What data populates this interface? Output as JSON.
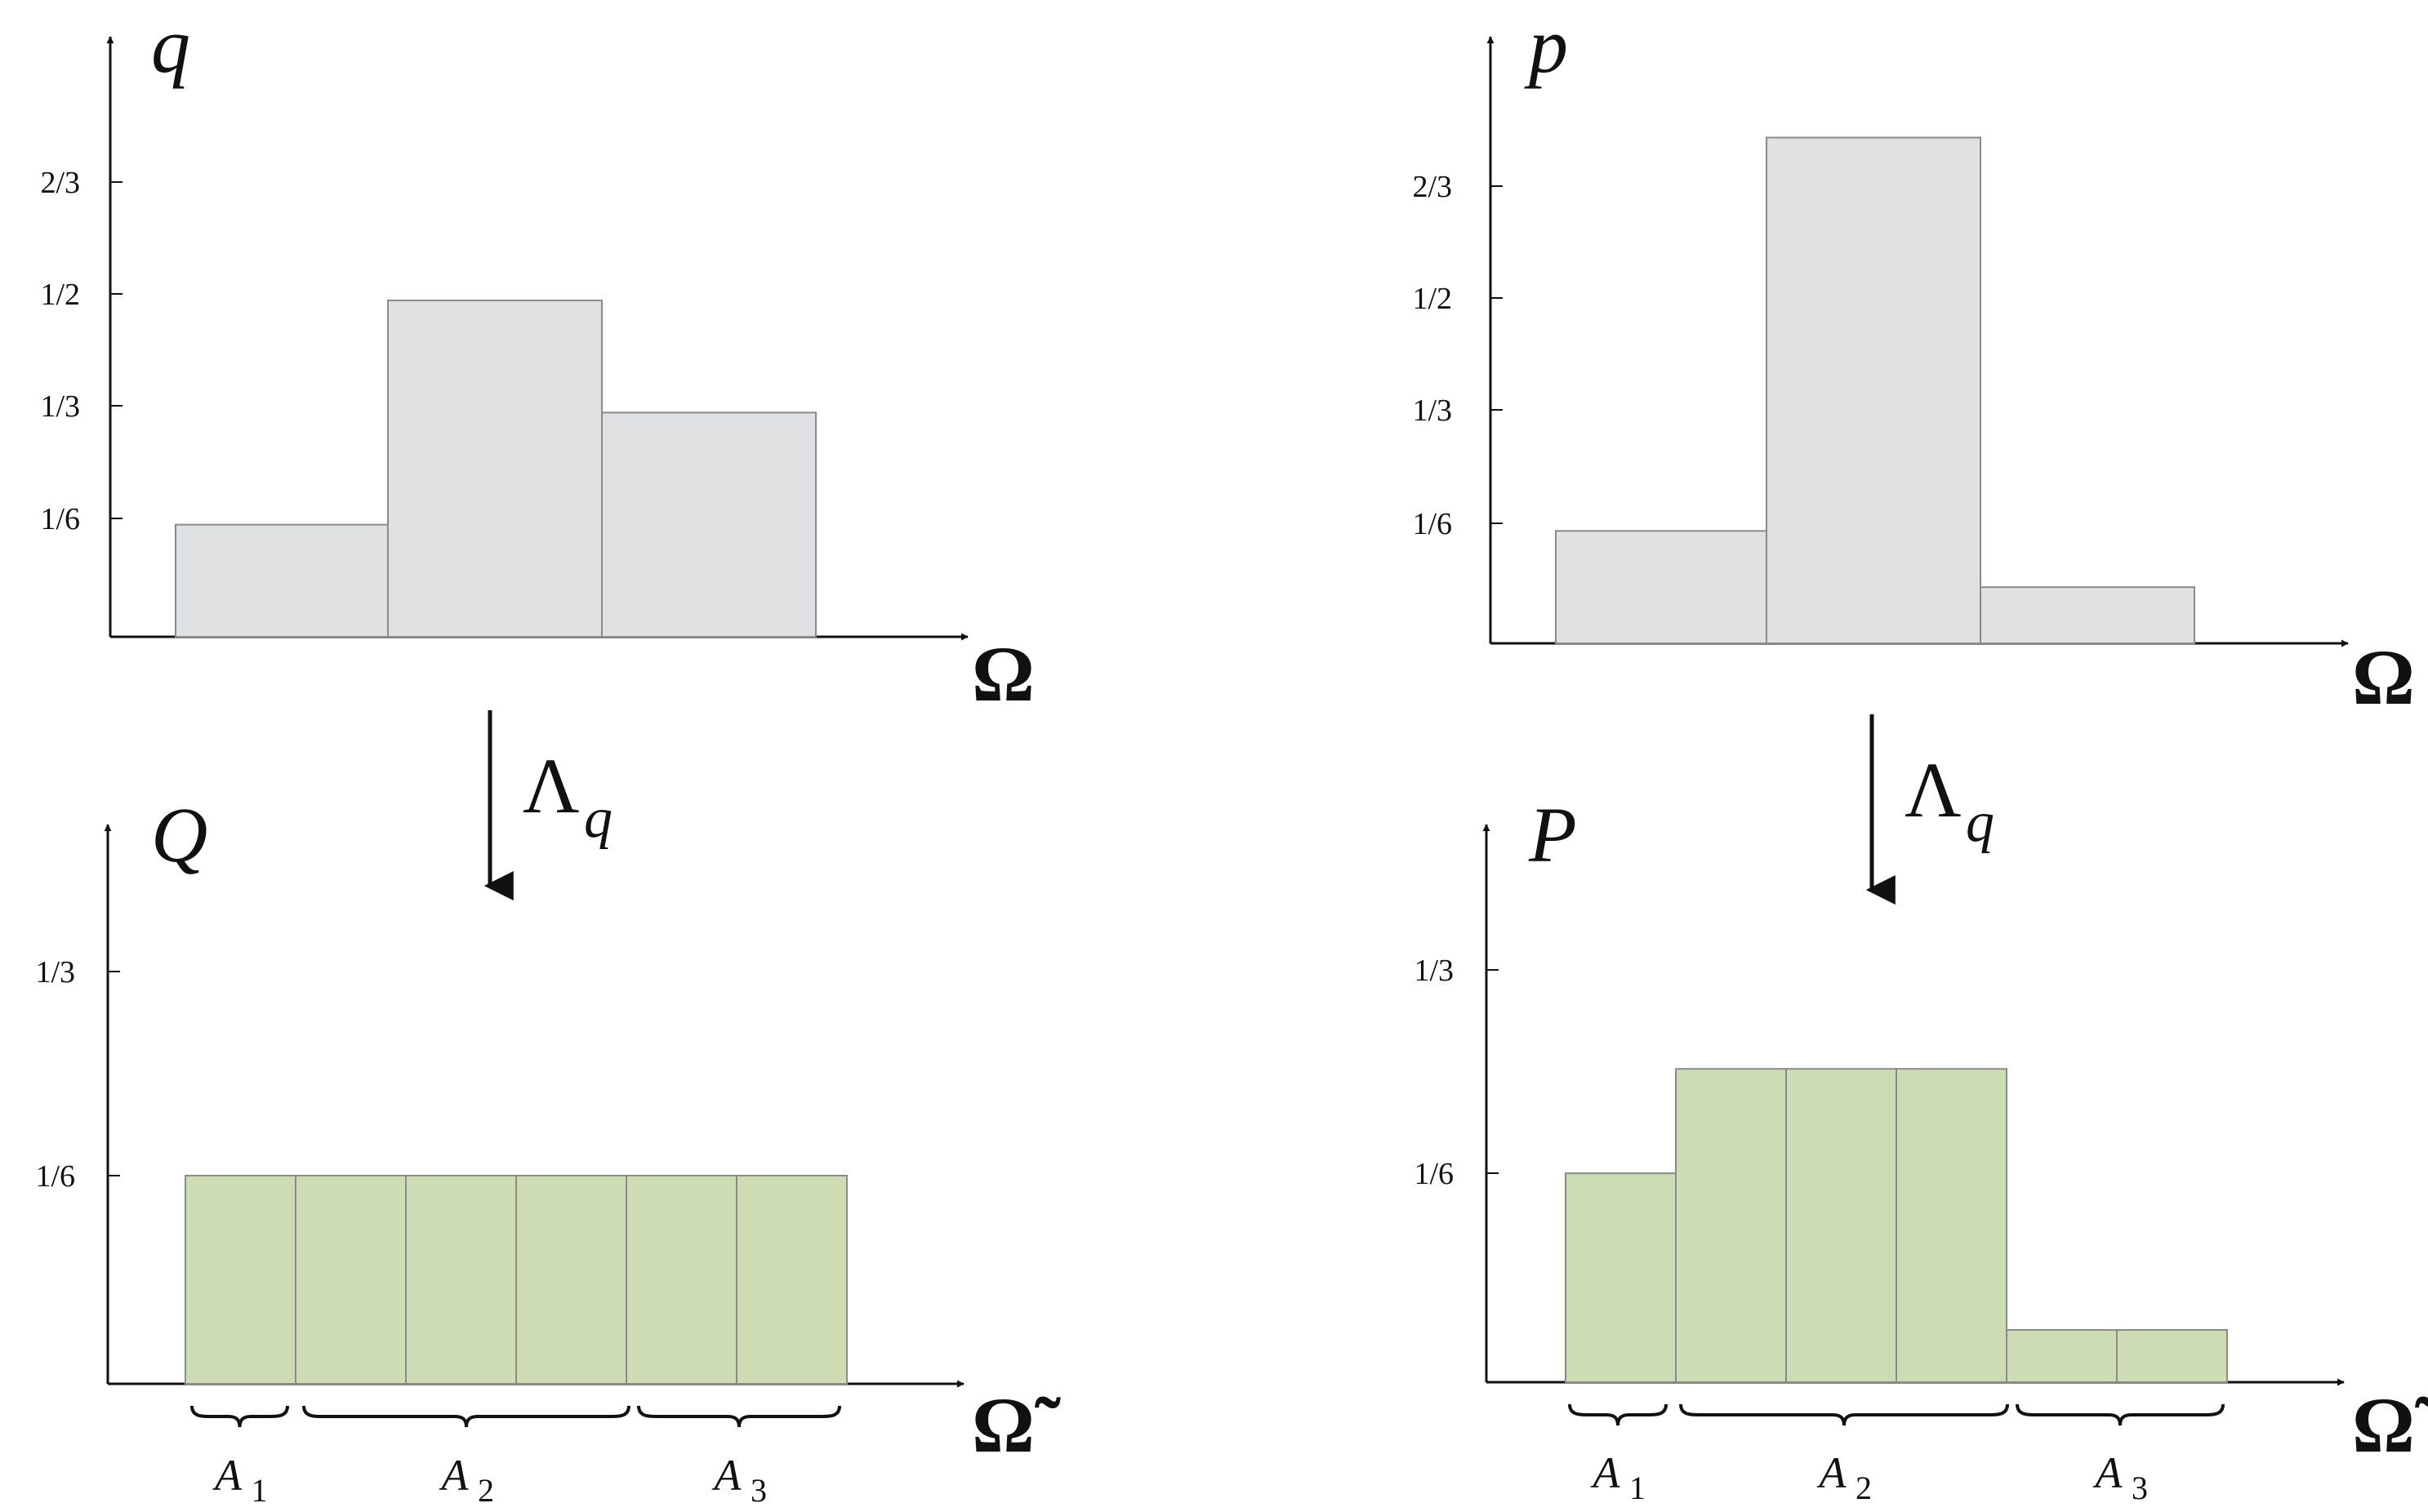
{
  "panels": {
    "q": {
      "variable": "q",
      "domain": "Ω",
      "ticks": [
        "1/6",
        "1/3",
        "1/2",
        "2/3"
      ],
      "bars": [
        {
          "value": 0.1667,
          "color": "#e0e1e3"
        },
        {
          "value": 0.5,
          "color": "#e0e1e3"
        },
        {
          "value": 0.3333,
          "color": "#e0e1e3"
        }
      ]
    },
    "p": {
      "variable": "p",
      "domain": "Ω",
      "ticks": [
        "1/6",
        "1/3",
        "1/2",
        "2/3"
      ],
      "bars": [
        {
          "value": 0.1667,
          "color": "#e0e1e3"
        },
        {
          "value": 0.75,
          "color": "#e0e1e3"
        },
        {
          "value": 0.0833,
          "color": "#e0e1e3"
        }
      ]
    },
    "Q": {
      "variable": "Q",
      "domain": "Ω̃",
      "ticks": [
        "1/6",
        "1/3"
      ],
      "bars": [
        {
          "value": 0.1667,
          "color": "#cddcb3"
        },
        {
          "value": 0.1667,
          "color": "#cddcb3"
        },
        {
          "value": 0.1667,
          "color": "#cddcb3"
        },
        {
          "value": 0.1667,
          "color": "#cddcb3"
        },
        {
          "value": 0.1667,
          "color": "#cddcb3"
        },
        {
          "value": 0.1667,
          "color": "#cddcb3"
        }
      ],
      "groups": [
        {
          "label": "A",
          "sub": "1"
        },
        {
          "label": "A",
          "sub": "2"
        },
        {
          "label": "A",
          "sub": "3"
        }
      ]
    },
    "P": {
      "variable": "P",
      "domain": "Ω̃",
      "ticks": [
        "1/6",
        "1/3"
      ],
      "bars": [
        {
          "value": 0.1667,
          "color": "#cddcb3"
        },
        {
          "value": 0.25,
          "color": "#cddcb3"
        },
        {
          "value": 0.25,
          "color": "#cddcb3"
        },
        {
          "value": 0.25,
          "color": "#cddcb3"
        },
        {
          "value": 0.0417,
          "color": "#cddcb3"
        },
        {
          "value": 0.0417,
          "color": "#cddcb3"
        }
      ],
      "groups": [
        {
          "label": "A",
          "sub": "1"
        },
        {
          "label": "A",
          "sub": "2"
        },
        {
          "label": "A",
          "sub": "3"
        }
      ]
    }
  },
  "maps": {
    "left": {
      "symbol": "Λ",
      "sub": "q"
    },
    "right": {
      "symbol": "Λ",
      "sub": "q"
    }
  },
  "style": {
    "bar_stroke": "#8a8a8a",
    "axis_color": "#111111"
  }
}
